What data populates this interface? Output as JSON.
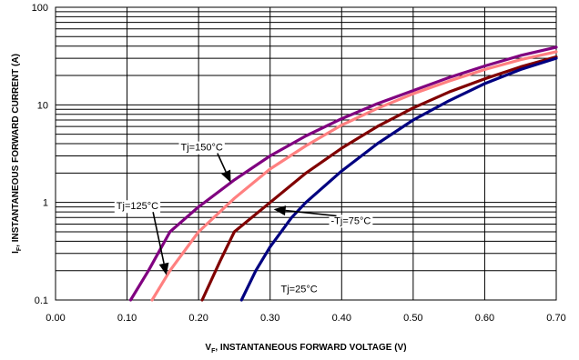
{
  "chart_data": {
    "type": "line",
    "title": "",
    "xlabel": "V",
    "xlabel_sub": "F",
    "xlabel_rest": ", INSTANTANEOUS FORWARD VOLTAGE (V)",
    "ylabel": "I",
    "ylabel_sub": "F",
    "ylabel_rest": ", INSTANTANEOUS FORWARD CURRENT (A)",
    "xlim": [
      0,
      0.7
    ],
    "ylim": [
      0.1,
      100
    ],
    "yscale": "log",
    "grid": true,
    "x_ticks": [
      0,
      0.1,
      0.2,
      0.3,
      0.4,
      0.5,
      0.6,
      0.7
    ],
    "x_tick_labels": [
      "0.00",
      "0.10",
      "0.20",
      "0.30",
      "0.40",
      "0.50",
      "0.60",
      "0.70"
    ],
    "y_ticks": [
      0.1,
      1,
      10,
      100
    ],
    "y_tick_labels": [
      "0.1",
      "1",
      "10",
      "100"
    ],
    "series": [
      {
        "name": "Tj=150°C",
        "color": "#800080",
        "points": [
          [
            0.105,
            0.1
          ],
          [
            0.13,
            0.2
          ],
          [
            0.16,
            0.5
          ],
          [
            0.2,
            0.9
          ],
          [
            0.25,
            1.7
          ],
          [
            0.3,
            3.0
          ],
          [
            0.35,
            4.8
          ],
          [
            0.4,
            7.2
          ],
          [
            0.45,
            10.3
          ],
          [
            0.5,
            14.0
          ],
          [
            0.55,
            19.0
          ],
          [
            0.6,
            25.0
          ],
          [
            0.65,
            32.0
          ],
          [
            0.7,
            39.0
          ]
        ]
      },
      {
        "name": "Tj=125°C",
        "color": "#ff8080",
        "points": [
          [
            0.135,
            0.1
          ],
          [
            0.16,
            0.2
          ],
          [
            0.2,
            0.5
          ],
          [
            0.25,
            1.1
          ],
          [
            0.3,
            2.2
          ],
          [
            0.35,
            3.8
          ],
          [
            0.4,
            6.2
          ],
          [
            0.45,
            9.2
          ],
          [
            0.5,
            13.0
          ],
          [
            0.55,
            17.5
          ],
          [
            0.6,
            23.0
          ],
          [
            0.65,
            29.0
          ],
          [
            0.7,
            35.0
          ]
        ]
      },
      {
        "name": "Tj=75°C",
        "color": "#800000",
        "points": [
          [
            0.205,
            0.1
          ],
          [
            0.23,
            0.25
          ],
          [
            0.25,
            0.5
          ],
          [
            0.3,
            1.0
          ],
          [
            0.35,
            2.0
          ],
          [
            0.4,
            3.6
          ],
          [
            0.45,
            6.0
          ],
          [
            0.5,
            9.3
          ],
          [
            0.55,
            13.5
          ],
          [
            0.6,
            18.5
          ],
          [
            0.65,
            24.5
          ],
          [
            0.7,
            31.0
          ]
        ]
      },
      {
        "name": "Tj=25°C",
        "color": "#000080",
        "points": [
          [
            0.26,
            0.1
          ],
          [
            0.28,
            0.2
          ],
          [
            0.3,
            0.35
          ],
          [
            0.33,
            0.7
          ],
          [
            0.35,
            1.0
          ],
          [
            0.4,
            2.1
          ],
          [
            0.45,
            4.0
          ],
          [
            0.5,
            7.0
          ],
          [
            0.55,
            11.0
          ],
          [
            0.6,
            16.5
          ],
          [
            0.65,
            23.0
          ],
          [
            0.7,
            30.0
          ]
        ]
      }
    ],
    "annotations": [
      {
        "text": "Tj=150°C",
        "x": 0.175,
        "y": 3.4,
        "arrow_to": [
          0.245,
          1.6
        ]
      },
      {
        "text": "Tj=125°C",
        "x": 0.085,
        "y": 0.85,
        "arrow_to": [
          0.155,
          0.18
        ]
      },
      {
        "text": "-Tj=75°C",
        "x": 0.385,
        "y": 0.6,
        "arrow_to": [
          0.305,
          0.85
        ]
      },
      {
        "text": "Tj=25°C",
        "x": 0.315,
        "y": 0.12,
        "arrow_to": null
      }
    ]
  }
}
